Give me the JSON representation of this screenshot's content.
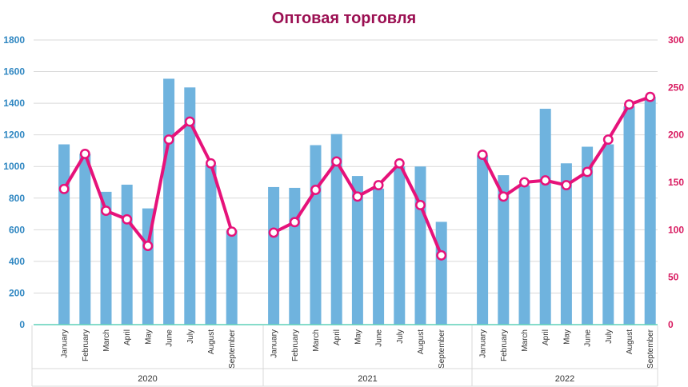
{
  "chart_data": {
    "type": "bar+line",
    "title": "Оптовая торговля",
    "groups": [
      {
        "year": "2020",
        "months": [
          "January",
          "February",
          "March",
          "April",
          "May",
          "June",
          "July",
          "August",
          "September"
        ]
      },
      {
        "year": "2021",
        "months": [
          "January",
          "February",
          "March",
          "April",
          "May",
          "June",
          "July",
          "August",
          "September"
        ]
      },
      {
        "year": "2022",
        "months": [
          "January",
          "February",
          "March",
          "April",
          "May",
          "June",
          "July",
          "August",
          "September"
        ]
      }
    ],
    "series": [
      {
        "name": "bars",
        "axis": "left",
        "values": [
          [
            1140,
            1080,
            840,
            885,
            735,
            1555,
            1500,
            1010,
            595
          ],
          [
            870,
            865,
            1135,
            1205,
            940,
            860,
            1000,
            1000,
            650
          ],
          [
            1070,
            945,
            880,
            1365,
            1020,
            1125,
            1140,
            1380,
            1440
          ]
        ]
      },
      {
        "name": "line",
        "axis": "right",
        "values": [
          [
            143,
            180,
            120,
            111,
            83,
            195,
            214,
            170,
            98
          ],
          [
            97,
            108,
            142,
            172,
            135,
            147,
            170,
            126,
            73
          ],
          [
            179,
            135,
            150,
            152,
            147,
            161,
            195,
            232,
            240
          ]
        ]
      }
    ],
    "left_axis": {
      "min": 0,
      "max": 1800,
      "step": 200,
      "ticks": [
        "0",
        "200",
        "400",
        "600",
        "800",
        "1000",
        "1200",
        "1400",
        "1600",
        "1800"
      ]
    },
    "right_axis": {
      "min": 0,
      "max": 300,
      "step": 50,
      "ticks": [
        "0",
        "50",
        "100",
        "150",
        "200",
        "250",
        "300"
      ]
    },
    "grid": true,
    "colors": {
      "title": "#9b0f52",
      "bar": "#6fb3de",
      "line": "#e6127a",
      "marker_fill": "#ffffff",
      "left_tick": "#2e86c1",
      "right_tick": "#d81b60",
      "grid": "#d9d9d9",
      "baseline": "#5fd1b8"
    }
  }
}
